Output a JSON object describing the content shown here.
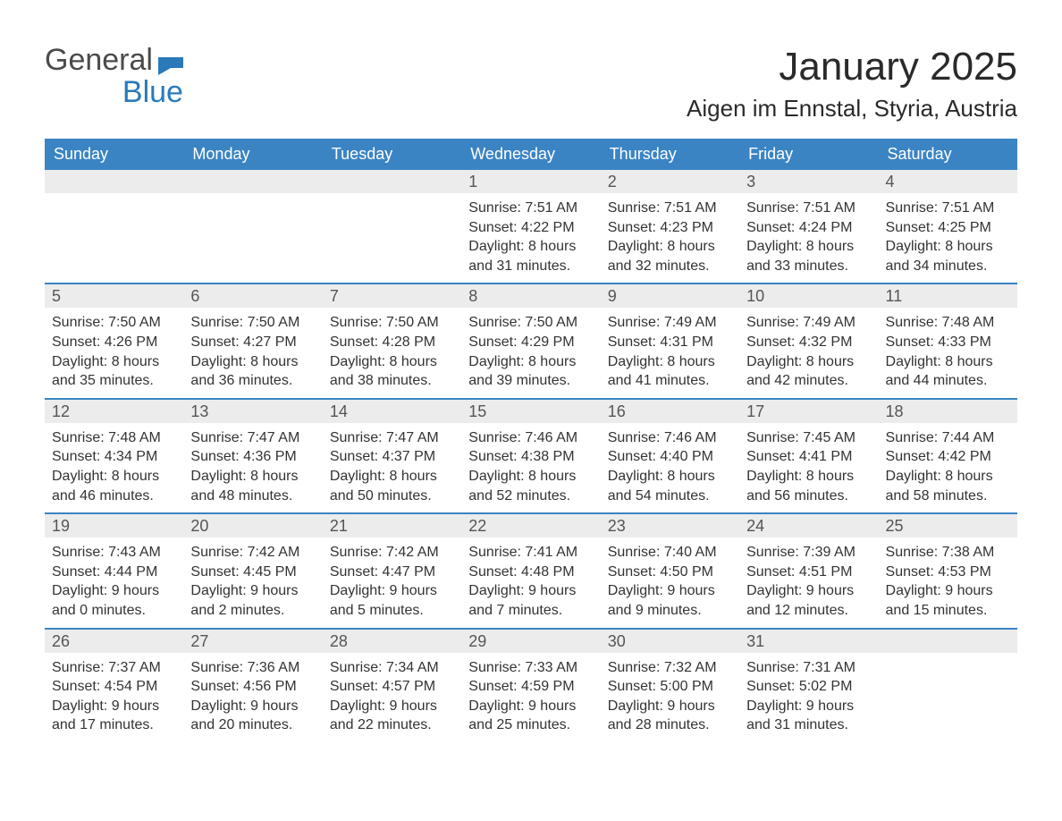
{
  "logo": {
    "word1": "General",
    "word2": "Blue",
    "flag_color": "#2a7ab9"
  },
  "title": "January 2025",
  "location": "Aigen im Ennstal, Styria, Austria",
  "colors": {
    "header_bg": "#3b84c4",
    "header_text": "#ffffff",
    "daynum_bg": "#ececec",
    "daynum_text": "#555555",
    "body_text": "#333333",
    "divider": "#3b84c4",
    "page_bg": "#ffffff"
  },
  "typography": {
    "title_fontsize": 44,
    "location_fontsize": 26,
    "header_fontsize": 18,
    "daynum_fontsize": 18,
    "cell_fontsize": 16,
    "logo_fontsize": 34
  },
  "weekdays": [
    "Sunday",
    "Monday",
    "Tuesday",
    "Wednesday",
    "Thursday",
    "Friday",
    "Saturday"
  ],
  "weeks": [
    [
      {
        "num": "",
        "sunrise": "",
        "sunset": "",
        "daylight1": "",
        "daylight2": ""
      },
      {
        "num": "",
        "sunrise": "",
        "sunset": "",
        "daylight1": "",
        "daylight2": ""
      },
      {
        "num": "",
        "sunrise": "",
        "sunset": "",
        "daylight1": "",
        "daylight2": ""
      },
      {
        "num": "1",
        "sunrise": "Sunrise: 7:51 AM",
        "sunset": "Sunset: 4:22 PM",
        "daylight1": "Daylight: 8 hours",
        "daylight2": "and 31 minutes."
      },
      {
        "num": "2",
        "sunrise": "Sunrise: 7:51 AM",
        "sunset": "Sunset: 4:23 PM",
        "daylight1": "Daylight: 8 hours",
        "daylight2": "and 32 minutes."
      },
      {
        "num": "3",
        "sunrise": "Sunrise: 7:51 AM",
        "sunset": "Sunset: 4:24 PM",
        "daylight1": "Daylight: 8 hours",
        "daylight2": "and 33 minutes."
      },
      {
        "num": "4",
        "sunrise": "Sunrise: 7:51 AM",
        "sunset": "Sunset: 4:25 PM",
        "daylight1": "Daylight: 8 hours",
        "daylight2": "and 34 minutes."
      }
    ],
    [
      {
        "num": "5",
        "sunrise": "Sunrise: 7:50 AM",
        "sunset": "Sunset: 4:26 PM",
        "daylight1": "Daylight: 8 hours",
        "daylight2": "and 35 minutes."
      },
      {
        "num": "6",
        "sunrise": "Sunrise: 7:50 AM",
        "sunset": "Sunset: 4:27 PM",
        "daylight1": "Daylight: 8 hours",
        "daylight2": "and 36 minutes."
      },
      {
        "num": "7",
        "sunrise": "Sunrise: 7:50 AM",
        "sunset": "Sunset: 4:28 PM",
        "daylight1": "Daylight: 8 hours",
        "daylight2": "and 38 minutes."
      },
      {
        "num": "8",
        "sunrise": "Sunrise: 7:50 AM",
        "sunset": "Sunset: 4:29 PM",
        "daylight1": "Daylight: 8 hours",
        "daylight2": "and 39 minutes."
      },
      {
        "num": "9",
        "sunrise": "Sunrise: 7:49 AM",
        "sunset": "Sunset: 4:31 PM",
        "daylight1": "Daylight: 8 hours",
        "daylight2": "and 41 minutes."
      },
      {
        "num": "10",
        "sunrise": "Sunrise: 7:49 AM",
        "sunset": "Sunset: 4:32 PM",
        "daylight1": "Daylight: 8 hours",
        "daylight2": "and 42 minutes."
      },
      {
        "num": "11",
        "sunrise": "Sunrise: 7:48 AM",
        "sunset": "Sunset: 4:33 PM",
        "daylight1": "Daylight: 8 hours",
        "daylight2": "and 44 minutes."
      }
    ],
    [
      {
        "num": "12",
        "sunrise": "Sunrise: 7:48 AM",
        "sunset": "Sunset: 4:34 PM",
        "daylight1": "Daylight: 8 hours",
        "daylight2": "and 46 minutes."
      },
      {
        "num": "13",
        "sunrise": "Sunrise: 7:47 AM",
        "sunset": "Sunset: 4:36 PM",
        "daylight1": "Daylight: 8 hours",
        "daylight2": "and 48 minutes."
      },
      {
        "num": "14",
        "sunrise": "Sunrise: 7:47 AM",
        "sunset": "Sunset: 4:37 PM",
        "daylight1": "Daylight: 8 hours",
        "daylight2": "and 50 minutes."
      },
      {
        "num": "15",
        "sunrise": "Sunrise: 7:46 AM",
        "sunset": "Sunset: 4:38 PM",
        "daylight1": "Daylight: 8 hours",
        "daylight2": "and 52 minutes."
      },
      {
        "num": "16",
        "sunrise": "Sunrise: 7:46 AM",
        "sunset": "Sunset: 4:40 PM",
        "daylight1": "Daylight: 8 hours",
        "daylight2": "and 54 minutes."
      },
      {
        "num": "17",
        "sunrise": "Sunrise: 7:45 AM",
        "sunset": "Sunset: 4:41 PM",
        "daylight1": "Daylight: 8 hours",
        "daylight2": "and 56 minutes."
      },
      {
        "num": "18",
        "sunrise": "Sunrise: 7:44 AM",
        "sunset": "Sunset: 4:42 PM",
        "daylight1": "Daylight: 8 hours",
        "daylight2": "and 58 minutes."
      }
    ],
    [
      {
        "num": "19",
        "sunrise": "Sunrise: 7:43 AM",
        "sunset": "Sunset: 4:44 PM",
        "daylight1": "Daylight: 9 hours",
        "daylight2": "and 0 minutes."
      },
      {
        "num": "20",
        "sunrise": "Sunrise: 7:42 AM",
        "sunset": "Sunset: 4:45 PM",
        "daylight1": "Daylight: 9 hours",
        "daylight2": "and 2 minutes."
      },
      {
        "num": "21",
        "sunrise": "Sunrise: 7:42 AM",
        "sunset": "Sunset: 4:47 PM",
        "daylight1": "Daylight: 9 hours",
        "daylight2": "and 5 minutes."
      },
      {
        "num": "22",
        "sunrise": "Sunrise: 7:41 AM",
        "sunset": "Sunset: 4:48 PM",
        "daylight1": "Daylight: 9 hours",
        "daylight2": "and 7 minutes."
      },
      {
        "num": "23",
        "sunrise": "Sunrise: 7:40 AM",
        "sunset": "Sunset: 4:50 PM",
        "daylight1": "Daylight: 9 hours",
        "daylight2": "and 9 minutes."
      },
      {
        "num": "24",
        "sunrise": "Sunrise: 7:39 AM",
        "sunset": "Sunset: 4:51 PM",
        "daylight1": "Daylight: 9 hours",
        "daylight2": "and 12 minutes."
      },
      {
        "num": "25",
        "sunrise": "Sunrise: 7:38 AM",
        "sunset": "Sunset: 4:53 PM",
        "daylight1": "Daylight: 9 hours",
        "daylight2": "and 15 minutes."
      }
    ],
    [
      {
        "num": "26",
        "sunrise": "Sunrise: 7:37 AM",
        "sunset": "Sunset: 4:54 PM",
        "daylight1": "Daylight: 9 hours",
        "daylight2": "and 17 minutes."
      },
      {
        "num": "27",
        "sunrise": "Sunrise: 7:36 AM",
        "sunset": "Sunset: 4:56 PM",
        "daylight1": "Daylight: 9 hours",
        "daylight2": "and 20 minutes."
      },
      {
        "num": "28",
        "sunrise": "Sunrise: 7:34 AM",
        "sunset": "Sunset: 4:57 PM",
        "daylight1": "Daylight: 9 hours",
        "daylight2": "and 22 minutes."
      },
      {
        "num": "29",
        "sunrise": "Sunrise: 7:33 AM",
        "sunset": "Sunset: 4:59 PM",
        "daylight1": "Daylight: 9 hours",
        "daylight2": "and 25 minutes."
      },
      {
        "num": "30",
        "sunrise": "Sunrise: 7:32 AM",
        "sunset": "Sunset: 5:00 PM",
        "daylight1": "Daylight: 9 hours",
        "daylight2": "and 28 minutes."
      },
      {
        "num": "31",
        "sunrise": "Sunrise: 7:31 AM",
        "sunset": "Sunset: 5:02 PM",
        "daylight1": "Daylight: 9 hours",
        "daylight2": "and 31 minutes."
      },
      {
        "num": "",
        "sunrise": "",
        "sunset": "",
        "daylight1": "",
        "daylight2": ""
      }
    ]
  ]
}
